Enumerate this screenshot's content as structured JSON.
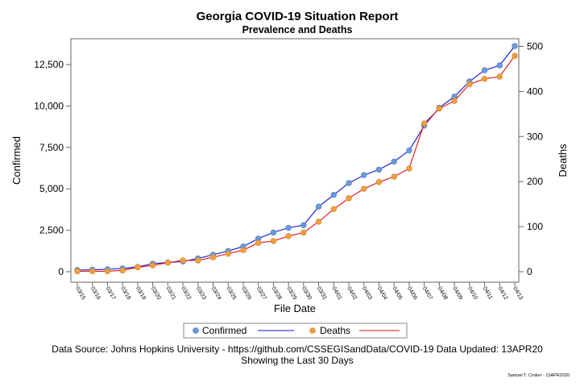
{
  "chart_data": {
    "type": "line",
    "title": "Georgia COVID-19 Situation Report",
    "subtitle": "Prevalence and Deaths",
    "xlabel": "File Date",
    "ylabel_left": "Confirmed",
    "ylabel_right": "Deaths",
    "categories": [
      "03/15",
      "03/16",
      "03/17",
      "03/18",
      "03/19",
      "03/20",
      "03/21",
      "03/22",
      "03/23",
      "03/24",
      "03/25",
      "03/26",
      "03/27",
      "03/28",
      "03/29",
      "03/30",
      "03/31",
      "04/01",
      "04/02",
      "04/03",
      "04/04",
      "04/05",
      "04/06",
      "04/07",
      "04/08",
      "04/09",
      "04/10",
      "04/11",
      "04/12",
      "04/13"
    ],
    "y_left": {
      "min": 0,
      "max": 13600,
      "ticks": [
        0,
        2500,
        5000,
        7500,
        10000,
        12500
      ],
      "tick_labels": [
        "0",
        "2,500",
        "5,000",
        "7,500",
        "10,000",
        "12,500"
      ]
    },
    "y_right": {
      "min": 0,
      "max": 500,
      "ticks": [
        0,
        100,
        200,
        300,
        400,
        500
      ],
      "tick_labels": [
        "0",
        "100",
        "200",
        "300",
        "400",
        "500"
      ]
    },
    "series": [
      {
        "name": "Confirmed",
        "axis": "left",
        "marker_color": "#6a9ad8",
        "line_color": "#1010d0",
        "values": [
          99,
          121,
          146,
          197,
          287,
          485,
          555,
          620,
          800,
          1026,
          1247,
          1525,
          2000,
          2366,
          2651,
          2808,
          3929,
          4638,
          5348,
          5831,
          6160,
          6647,
          7314,
          8818,
          9901,
          10566,
          11483,
          12159,
          12452,
          13621
        ]
      },
      {
        "name": "Deaths",
        "axis": "left_right",
        "marker_color": "#f0a040",
        "line_color": "#e01010",
        "values": [
          1,
          1,
          1,
          3,
          10,
          14,
          20,
          25,
          25,
          32,
          40,
          48,
          64,
          68,
          79,
          87,
          111,
          139,
          163,
          184,
          199,
          211,
          229,
          329,
          362,
          379,
          416,
          428,
          433,
          479
        ]
      }
    ],
    "legend": [
      "Confirmed",
      "Deaths"
    ],
    "legend_position": "bottom"
  },
  "footer": {
    "source": "Data Source: Johns Hopkins University - https://github.com/CSSEGISandData/COVID-19  Data Updated: 13APR20",
    "window": "Showing the Last 30 Days",
    "credit": "Samuel T. Croker - 13APR2020"
  }
}
